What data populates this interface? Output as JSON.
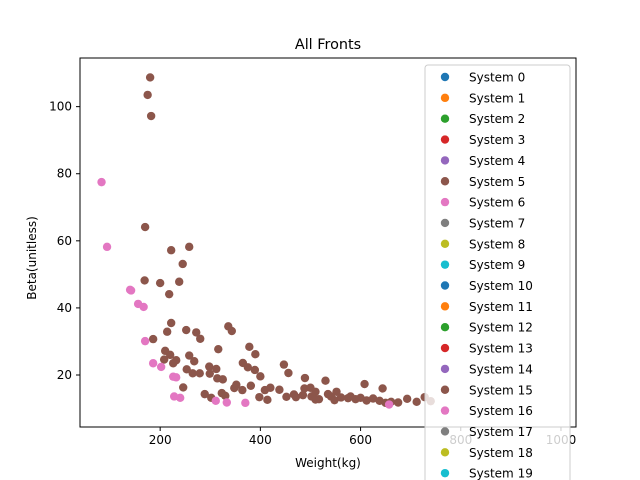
{
  "chart_data": {
    "type": "scatter",
    "title": "All Fronts",
    "xlabel": "Weight(kg)",
    "ylabel": "Beta(unitless)",
    "xlim": [
      40,
      1030
    ],
    "ylim": [
      4.5,
      114.5
    ],
    "xticks": [
      200,
      400,
      600,
      800,
      1000
    ],
    "yticks": [
      20,
      40,
      60,
      80,
      100
    ],
    "grid": false,
    "legend_position": "upper-right",
    "series": [
      {
        "name": "System 0",
        "color": "#1f77b4",
        "points": []
      },
      {
        "name": "System 1",
        "color": "#ff7f0e",
        "points": []
      },
      {
        "name": "System 2",
        "color": "#2ca02c",
        "points": []
      },
      {
        "name": "System 3",
        "color": "#d62728",
        "points": []
      },
      {
        "name": "System 4",
        "color": "#9467bd",
        "points": []
      },
      {
        "name": "System 5",
        "color": "#8c564b",
        "points": [
          [
            180,
            108.7
          ],
          [
            175,
            103.5
          ],
          [
            182,
            97.2
          ],
          [
            170,
            64.1
          ],
          [
            258,
            58.2
          ],
          [
            222,
            57.2
          ],
          [
            169,
            48.2
          ],
          [
            200,
            47.4
          ],
          [
            238,
            47.8
          ],
          [
            218,
            44.1
          ],
          [
            245,
            53.1
          ],
          [
            186,
            30.7
          ],
          [
            214,
            32.9
          ],
          [
            222,
            35.5
          ],
          [
            252,
            33.4
          ],
          [
            272,
            32.7
          ],
          [
            280,
            30.8
          ],
          [
            336,
            34.5
          ],
          [
            343,
            33.1
          ],
          [
            378,
            28.4
          ],
          [
            390,
            26.2
          ],
          [
            316,
            27.7
          ],
          [
            210,
            27.2
          ],
          [
            220,
            26.0
          ],
          [
            258,
            25.8
          ],
          [
            268,
            24.1
          ],
          [
            208,
            24.6
          ],
          [
            232,
            24.4
          ],
          [
            298,
            22.5
          ],
          [
            312,
            21.8
          ],
          [
            365,
            23.6
          ],
          [
            375,
            22.3
          ],
          [
            389,
            21.5
          ],
          [
            447,
            23.1
          ],
          [
            456,
            20.6
          ],
          [
            253,
            21.7
          ],
          [
            265,
            20.5
          ],
          [
            299,
            20.4
          ],
          [
            314,
            19.0
          ],
          [
            325,
            18.7
          ],
          [
            352,
            17.1
          ],
          [
            381,
            16.8
          ],
          [
            409,
            15.5
          ],
          [
            438,
            15.6
          ],
          [
            467,
            14.2
          ],
          [
            488,
            16.0
          ],
          [
            500,
            16.2
          ],
          [
            510,
            15.0
          ],
          [
            530,
            18.3
          ],
          [
            552,
            15.0
          ],
          [
            608,
            17.3
          ],
          [
            644,
            16.0
          ],
          [
            489,
            19.1
          ],
          [
            348,
            16.1
          ],
          [
            330,
            13.8
          ],
          [
            302,
            13.2
          ],
          [
            289,
            14.3
          ],
          [
            323,
            14.6
          ],
          [
            364,
            15.5
          ],
          [
            398,
            13.4
          ],
          [
            414,
            12.6
          ],
          [
            452,
            13.5
          ],
          [
            471,
            13.4
          ],
          [
            485,
            14.0
          ],
          [
            502,
            13.6
          ],
          [
            517,
            12.8
          ],
          [
            541,
            13.6
          ],
          [
            548,
            12.5
          ],
          [
            561,
            13.3
          ],
          [
            575,
            13.1
          ],
          [
            590,
            12.8
          ],
          [
            600,
            13.2
          ],
          [
            612,
            12.4
          ],
          [
            625,
            13.0
          ],
          [
            638,
            12.3
          ],
          [
            650,
            11.7
          ],
          [
            661,
            12.0
          ],
          [
            675,
            11.8
          ],
          [
            693,
            12.9
          ],
          [
            712,
            12.0
          ],
          [
            728,
            13.4
          ],
          [
            740,
            12.2
          ],
          [
            226,
            23.5
          ],
          [
            246,
            16.3
          ],
          [
            279,
            20.5
          ],
          [
            400,
            19.6
          ],
          [
            420,
            16.2
          ],
          [
            510,
            12.7
          ],
          [
            535,
            14.3
          ],
          [
            580,
            13.6
          ]
        ]
      },
      {
        "name": "System 6",
        "color": "#e377c2",
        "points": [
          [
            83,
            77.5
          ],
          [
            94,
            58.2
          ],
          [
            140,
            45.4
          ],
          [
            142,
            45.2
          ],
          [
            156,
            41.2
          ],
          [
            167,
            40.3
          ],
          [
            170,
            30.1
          ],
          [
            186,
            23.5
          ],
          [
            202,
            22.4
          ],
          [
            226,
            19.5
          ],
          [
            232,
            19.3
          ],
          [
            228,
            13.6
          ],
          [
            240,
            13.2
          ],
          [
            311,
            12.3
          ],
          [
            333,
            11.8
          ],
          [
            370,
            11.7
          ],
          [
            657,
            11.2
          ]
        ]
      },
      {
        "name": "System 7",
        "color": "#7f7f7f",
        "points": []
      },
      {
        "name": "System 8",
        "color": "#bcbd22",
        "points": []
      },
      {
        "name": "System 9",
        "color": "#17becf",
        "points": []
      },
      {
        "name": "System 10",
        "color": "#1f77b4",
        "points": []
      },
      {
        "name": "System 11",
        "color": "#ff7f0e",
        "points": []
      },
      {
        "name": "System 12",
        "color": "#2ca02c",
        "points": []
      },
      {
        "name": "System 13",
        "color": "#d62728",
        "points": []
      },
      {
        "name": "System 14",
        "color": "#9467bd",
        "points": []
      },
      {
        "name": "System 15",
        "color": "#8c564b",
        "points": []
      },
      {
        "name": "System 16",
        "color": "#e377c2",
        "points": []
      },
      {
        "name": "System 17",
        "color": "#7f7f7f",
        "points": []
      },
      {
        "name": "System 18",
        "color": "#bcbd22",
        "points": []
      },
      {
        "name": "System 19",
        "color": "#17becf",
        "points": []
      }
    ]
  }
}
